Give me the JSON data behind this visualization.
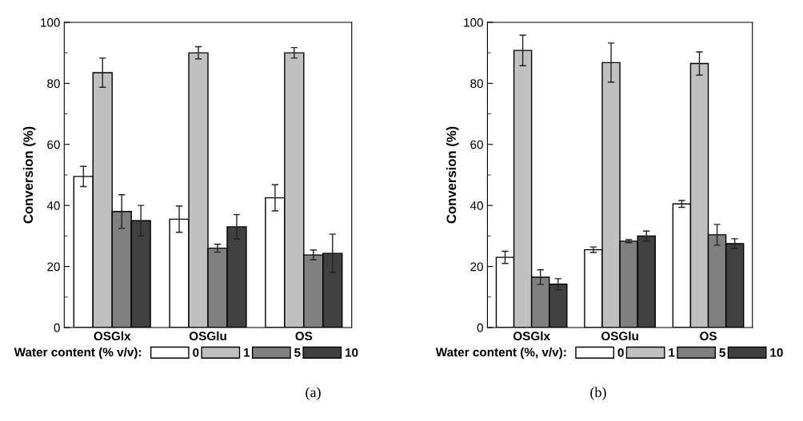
{
  "chart_data": [
    {
      "type": "bar",
      "categories": [
        "OSGlx",
        "OSGlu",
        "OS"
      ],
      "ylabel": "Conversion (%)",
      "ylim": [
        0,
        100
      ],
      "yticks": [
        0,
        {
          "value": 10,
          "label": null
        },
        20,
        {
          "value": 30,
          "label": null
        },
        40,
        {
          "value": 50,
          "label": null
        },
        60,
        {
          "value": 70,
          "label": null
        },
        80,
        {
          "value": 90,
          "label": null
        },
        100
      ],
      "legend": "bottom",
      "legend_title": "Water content (% v/v):",
      "annotations": [
        "(a)"
      ],
      "series": [
        {
          "name": "0",
          "color": "#ffffff",
          "values": [
            49.5,
            35.5,
            42.5
          ],
          "errors": [
            3.3,
            4.3,
            4.3
          ]
        },
        {
          "name": "1",
          "color": "#c0c0c0",
          "values": [
            83.5,
            90,
            90
          ],
          "errors": [
            4.8,
            2,
            1.7
          ]
        },
        {
          "name": "5",
          "color": "#808080",
          "values": [
            38,
            26,
            23.8
          ],
          "errors": [
            5.5,
            1.3,
            1.6
          ]
        },
        {
          "name": "10",
          "color": "#404040",
          "values": [
            35,
            33,
            24.3
          ],
          "errors": [
            5,
            4,
            6.3
          ]
        }
      ]
    },
    {
      "type": "bar",
      "categories": [
        "OSGlx",
        "OSGlu",
        "OS"
      ],
      "ylabel": "Conversion (%)",
      "ylim": [
        0,
        100
      ],
      "yticks": [
        0,
        {
          "value": 10,
          "label": null
        },
        20,
        {
          "value": 30,
          "label": null
        },
        40,
        {
          "value": 50,
          "label": null
        },
        60,
        {
          "value": 70,
          "label": null
        },
        80,
        {
          "value": 90,
          "label": null
        },
        100
      ],
      "legend": "bottom",
      "legend_title": "Water content (%, v/v):",
      "annotations": [
        "(b)"
      ],
      "series": [
        {
          "name": "0",
          "color": "#ffffff",
          "values": [
            23,
            25.5,
            40.5
          ],
          "errors": [
            2,
            0.9,
            1.1
          ]
        },
        {
          "name": "1",
          "color": "#c0c0c0",
          "values": [
            90.8,
            86.8,
            86.5
          ],
          "errors": [
            5,
            6.4,
            3.8
          ]
        },
        {
          "name": "5",
          "color": "#808080",
          "values": [
            16.5,
            28.3,
            30.4
          ],
          "errors": [
            2.4,
            0.5,
            3.4
          ]
        },
        {
          "name": "10",
          "color": "#404040",
          "values": [
            14.2,
            30,
            27.5
          ],
          "errors": [
            1.8,
            1.6,
            1.6
          ]
        }
      ]
    }
  ]
}
